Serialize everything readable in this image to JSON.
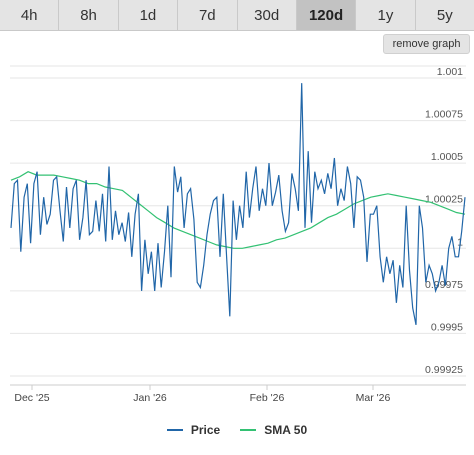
{
  "tabs": [
    {
      "label": "4h",
      "active": false
    },
    {
      "label": "8h",
      "active": false
    },
    {
      "label": "1d",
      "active": false
    },
    {
      "label": "7d",
      "active": false
    },
    {
      "label": "30d",
      "active": false
    },
    {
      "label": "120d",
      "active": true
    },
    {
      "label": "1y",
      "active": false
    },
    {
      "label": "5y",
      "active": false
    }
  ],
  "remove_graph_label": "remove graph",
  "colors": {
    "price": "#2166a8",
    "sma": "#33c173"
  },
  "legend": {
    "price": "Price",
    "sma": "SMA 50"
  },
  "chart_data": {
    "type": "line",
    "x_ticks": [
      "Dec '25",
      "Jan '26",
      "Feb '26",
      "Mar '26"
    ],
    "y_ticks": [
      "1.001",
      "1.00075",
      "1.0005",
      "1.00025",
      "1",
      "0.99975",
      "0.9995",
      "0.99925"
    ],
    "ylim": [
      0.99925,
      1.001
    ],
    "series": [
      {
        "name": "Price",
        "values": [
          1.00012,
          1.00038,
          1.0004,
          0.99998,
          1.0003,
          1.00038,
          1.00003,
          1.00038,
          1.00045,
          1.00008,
          1.0003,
          1.00014,
          1.0002,
          1.0004,
          1.00042,
          1.00022,
          1.00004,
          1.00036,
          1.00012,
          1.00035,
          1.0004,
          1.00005,
          1.00018,
          1.0004,
          1.00008,
          1.0001,
          1.00028,
          1.0001,
          1.00032,
          1.00004,
          1.00048,
          1.00005,
          1.00022,
          1.00008,
          1.00015,
          1.00004,
          1.00021,
          0.99995,
          1.0002,
          1.00032,
          0.99975,
          1.00005,
          0.99985,
          0.99998,
          0.99975,
          1.00003,
          0.99977,
          0.99998,
          1.00025,
          0.99983,
          1.00048,
          1.00033,
          1.00042,
          1.00012,
          1.00032,
          1.00035,
          1.00017,
          0.9998,
          0.99977,
          0.9999,
          1.00008,
          1.0002,
          1.00028,
          1.0003,
          0.99995,
          1.00032,
          0.99995,
          0.9996,
          1.00028,
          1.00005,
          1.00025,
          1.00012,
          1.00045,
          1.00018,
          1.00035,
          1.00048,
          1.00022,
          1.00035,
          1.00025,
          1.0005,
          1.00025,
          1.00033,
          1.00043,
          1.00022,
          1.0001,
          1.00015,
          1.00044,
          1.00035,
          1.00022,
          1.00097,
          1.00012,
          1.00057,
          1.00015,
          1.00045,
          1.00035,
          1.0004,
          1.00032,
          1.00044,
          1.00035,
          1.00053,
          1.00025,
          1.00035,
          1.00028,
          1.00048,
          1.00038,
          1.00012,
          1.00042,
          1.0004,
          1.0003,
          0.99992,
          1.0002,
          1.0002,
          1.00025,
          0.99995,
          0.9998,
          0.99995,
          0.99985,
          0.99993,
          0.99968,
          0.9999,
          0.99977,
          1.00025,
          0.99987,
          0.99965,
          0.99955,
          1.00025,
          1.00012,
          0.9998,
          0.9999,
          0.99985,
          0.99975,
          0.9998,
          0.9999,
          0.99978,
          1.0,
          1.00007,
          0.99995,
          0.99995,
          1.0001,
          1.0003
        ]
      },
      {
        "name": "SMA 50",
        "values": [
          1.0004,
          1.00042,
          1.00045,
          1.00043,
          1.00043,
          1.00043,
          1.00042,
          1.00041,
          1.0004,
          1.00038,
          1.00038,
          1.00036,
          1.00035,
          1.00034,
          1.0003,
          1.00026,
          1.00022,
          1.00018,
          1.00015,
          1.00012,
          1.0001,
          1.00008,
          1.00006,
          1.00004,
          1.00002,
          1.00001,
          1.0,
          1.0,
          1.00001,
          1.00002,
          1.00003,
          1.00005,
          1.00006,
          1.00008,
          1.0001,
          1.00012,
          1.00015,
          1.00018,
          1.0002,
          1.00023,
          1.00026,
          1.00028,
          1.0003,
          1.00031,
          1.00032,
          1.00031,
          1.0003,
          1.00029,
          1.00028,
          1.00027,
          1.00025,
          1.00023,
          1.00021,
          1.0002
        ]
      }
    ]
  }
}
